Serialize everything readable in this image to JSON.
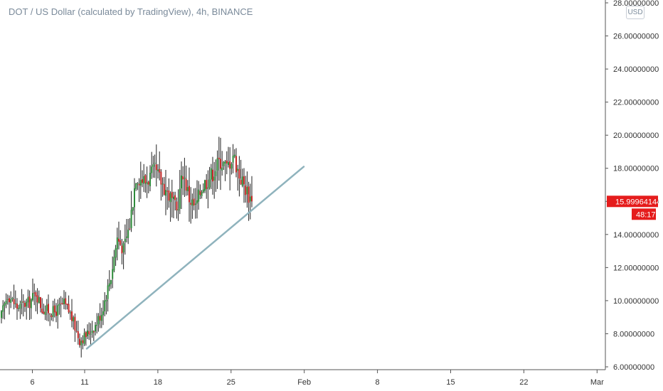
{
  "header": {
    "symbol_title": "DOT / US Dollar (calculated by TradingView), 4h, BINANCE",
    "currency": "USD"
  },
  "price_tag": {
    "value": "15.99964144",
    "countdown": "48:17"
  },
  "colors": {
    "up": "#2e8b3a",
    "down": "#c62828",
    "trendline": "#8fb3bd",
    "price_tag": "#e51c1c",
    "axis_line": "#555555"
  },
  "chart_data": {
    "type": "candlestick",
    "title": "",
    "interval": "4h",
    "exchange": "BINANCE",
    "y_axis": {
      "side": "right",
      "range": [
        6,
        28
      ],
      "ticks": [
        "6.00000000",
        "8.00000000",
        "10.00000000",
        "12.00000000",
        "14.00000000",
        "16.00000000",
        "18.00000000",
        "20.00000000",
        "22.00000000",
        "24.00000000",
        "26.00000000",
        "28.00000000"
      ]
    },
    "x_axis": {
      "labels": [
        "6",
        "11",
        "18",
        "25",
        "Feb",
        "8",
        "15",
        "22",
        "Mar"
      ]
    },
    "trendline": {
      "from": {
        "x": "Jan 11",
        "y": 7.1
      },
      "to": {
        "x": "Jan 29",
        "y": 18.1
      }
    },
    "last_price": 15.99964144,
    "anchors": [
      {
        "i": 0,
        "p": 9.1
      },
      {
        "i": 4,
        "p": 10.4
      },
      {
        "i": 10,
        "p": 9.6
      },
      {
        "i": 18,
        "p": 9.9
      },
      {
        "i": 22,
        "p": 10.5
      },
      {
        "i": 26,
        "p": 9.5
      },
      {
        "i": 34,
        "p": 9.3
      },
      {
        "i": 40,
        "p": 9.8
      },
      {
        "i": 44,
        "p": 9.2
      },
      {
        "i": 50,
        "p": 7.6
      },
      {
        "i": 54,
        "p": 7.9
      },
      {
        "i": 60,
        "p": 8.5
      },
      {
        "i": 64,
        "p": 9.3
      },
      {
        "i": 70,
        "p": 11.5
      },
      {
        "i": 74,
        "p": 13.8
      },
      {
        "i": 78,
        "p": 13.1
      },
      {
        "i": 82,
        "p": 14.6
      },
      {
        "i": 86,
        "p": 17.6
      },
      {
        "i": 92,
        "p": 17.2
      },
      {
        "i": 98,
        "p": 17.8
      },
      {
        "i": 104,
        "p": 16.9
      },
      {
        "i": 108,
        "p": 16.2
      },
      {
        "i": 112,
        "p": 15.4
      },
      {
        "i": 116,
        "p": 17.8
      },
      {
        "i": 120,
        "p": 16.2
      },
      {
        "i": 124,
        "p": 15.6
      },
      {
        "i": 128,
        "p": 16.9
      },
      {
        "i": 134,
        "p": 17.6
      },
      {
        "i": 140,
        "p": 18.5
      },
      {
        "i": 144,
        "p": 18.0
      },
      {
        "i": 148,
        "p": 18.9
      },
      {
        "i": 152,
        "p": 17.6
      },
      {
        "i": 156,
        "p": 16.8
      },
      {
        "i": 160,
        "p": 16.0
      }
    ]
  }
}
